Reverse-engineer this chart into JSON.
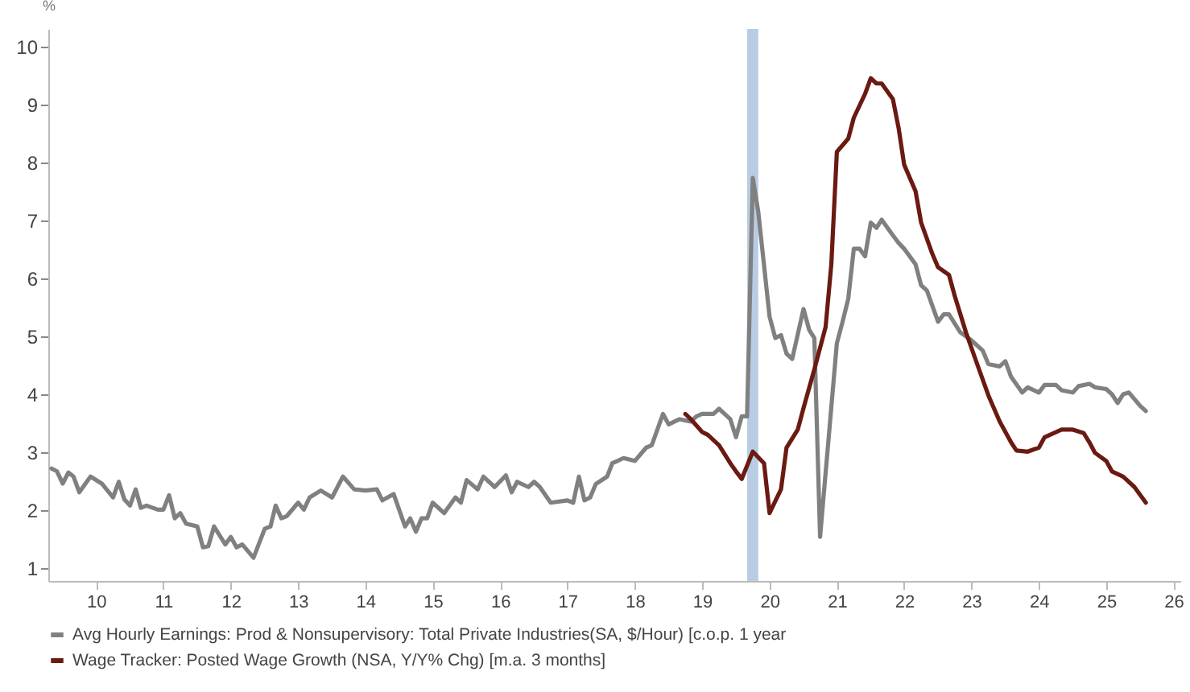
{
  "chart_data": {
    "type": "line",
    "ylabel": "%",
    "xlim": [
      "2009-10-15",
      "2026-08-07"
    ],
    "ylim": [
      0.78,
      10.3
    ],
    "xticks": [
      {
        "value": "2010-07",
        "label": "10"
      },
      {
        "value": "2011-07",
        "label": "11"
      },
      {
        "value": "2012-07",
        "label": "12"
      },
      {
        "value": "2013-07",
        "label": "13"
      },
      {
        "value": "2014-07",
        "label": "14"
      },
      {
        "value": "2015-07",
        "label": "15"
      },
      {
        "value": "2016-07",
        "label": "16"
      },
      {
        "value": "2017-07",
        "label": "17"
      },
      {
        "value": "2018-07",
        "label": "18"
      },
      {
        "value": "2019-07",
        "label": "19"
      },
      {
        "value": "2020-07",
        "label": "20"
      },
      {
        "value": "2021-07",
        "label": "21"
      },
      {
        "value": "2022-07",
        "label": "22"
      },
      {
        "value": "2023-07",
        "label": "23"
      },
      {
        "value": "2024-07",
        "label": "24"
      },
      {
        "value": "2025-07",
        "label": "25"
      },
      {
        "value": "2026-07",
        "label": "26"
      }
    ],
    "yticks": [
      1,
      2,
      3,
      4,
      5,
      6,
      7,
      8,
      9,
      10
    ],
    "grid": false,
    "legend": "bottom",
    "bands": [
      {
        "axis": "x",
        "from": "2020-03",
        "to": "2020-05",
        "color": "#b8cce4"
      }
    ],
    "series": [
      {
        "name": "Avg Hourly Earnings: Prod & Nonsupervisory: Total Private Industries(SA, $/Hour) [c.o.p. 1 year",
        "color": "#808080",
        "x": [
          "2009-11",
          "2009-12",
          "2010-01",
          "2010-02",
          "2010-03",
          "2010-04",
          "2010-06",
          "2010-08",
          "2010-10",
          "2010-11",
          "2010-12",
          "2011-01",
          "2011-02",
          "2011-03",
          "2011-04",
          "2011-06",
          "2011-07",
          "2011-08",
          "2011-09",
          "2011-10",
          "2011-11",
          "2012-01",
          "2012-02",
          "2012-03",
          "2012-04",
          "2012-06",
          "2012-07",
          "2012-08",
          "2012-09",
          "2012-11",
          "2013-01",
          "2013-02",
          "2013-03",
          "2013-04",
          "2013-05",
          "2013-07",
          "2013-08",
          "2013-09",
          "2013-11",
          "2014-01",
          "2014-03",
          "2014-05",
          "2014-07",
          "2014-09",
          "2014-10",
          "2014-12",
          "2015-02",
          "2015-03",
          "2015-04",
          "2015-05",
          "2015-06",
          "2015-07",
          "2015-09",
          "2015-11",
          "2015-12",
          "2016-01",
          "2016-03",
          "2016-04",
          "2016-06",
          "2016-08",
          "2016-09",
          "2016-10",
          "2016-12",
          "2017-01",
          "2017-02",
          "2017-04",
          "2017-07",
          "2017-08",
          "2017-09",
          "2017-10",
          "2017-11",
          "2017-12",
          "2018-02",
          "2018-03",
          "2018-05",
          "2018-07",
          "2018-09",
          "2018-10",
          "2018-12",
          "2019-01",
          "2019-03",
          "2019-05",
          "2019-06",
          "2019-07",
          "2019-09",
          "2019-10",
          "2019-12",
          "2020-01",
          "2020-02",
          "2020-03",
          "2020-04",
          "2020-05",
          "2020-07",
          "2020-08",
          "2020-09",
          "2020-10",
          "2020-11",
          "2021-01",
          "2021-02",
          "2021-03",
          "2021-04",
          "2021-07",
          "2021-08",
          "2021-09",
          "2021-10",
          "2021-11",
          "2021-12",
          "2022-01",
          "2022-02",
          "2022-03",
          "2022-05",
          "2022-06",
          "2022-07",
          "2022-09",
          "2022-10",
          "2022-11",
          "2023-01",
          "2023-02",
          "2023-03",
          "2023-05",
          "2023-07",
          "2023-09",
          "2023-10",
          "2023-12",
          "2024-01",
          "2024-02",
          "2024-04",
          "2024-05",
          "2024-07",
          "2024-08",
          "2024-10",
          "2024-11",
          "2025-01",
          "2025-02",
          "2025-04",
          "2025-05",
          "2025-07",
          "2025-08",
          "2025-09",
          "2025-10",
          "2025-11",
          "2026-01",
          "2026-02"
        ],
        "values": [
          2.72,
          2.67,
          2.46,
          2.65,
          2.58,
          2.31,
          2.58,
          2.46,
          2.22,
          2.49,
          2.19,
          2.08,
          2.36,
          2.04,
          2.08,
          2.01,
          2.01,
          2.26,
          1.86,
          1.95,
          1.77,
          1.72,
          1.36,
          1.38,
          1.72,
          1.41,
          1.54,
          1.36,
          1.41,
          1.18,
          1.68,
          1.72,
          2.08,
          1.86,
          1.9,
          2.13,
          2.01,
          2.22,
          2.34,
          2.22,
          2.58,
          2.36,
          2.34,
          2.36,
          2.17,
          2.28,
          1.72,
          1.86,
          1.63,
          1.86,
          1.86,
          2.13,
          1.95,
          2.22,
          2.13,
          2.52,
          2.36,
          2.58,
          2.4,
          2.6,
          2.31,
          2.49,
          2.4,
          2.49,
          2.4,
          2.13,
          2.17,
          2.13,
          2.58,
          2.17,
          2.22,
          2.45,
          2.58,
          2.81,
          2.9,
          2.85,
          3.08,
          3.12,
          3.66,
          3.48,
          3.57,
          3.53,
          3.62,
          3.66,
          3.66,
          3.75,
          3.57,
          3.26,
          3.62,
          3.62,
          7.73,
          7.14,
          5.34,
          4.97,
          5.02,
          4.7,
          4.61,
          5.47,
          5.11,
          4.97,
          1.54,
          4.88,
          5.25,
          5.65,
          6.51,
          6.51,
          6.38,
          6.96,
          6.87,
          7.01,
          6.74,
          6.61,
          6.51,
          6.24,
          5.88,
          5.79,
          5.25,
          5.38,
          5.38,
          5.07,
          4.93,
          4.75,
          4.52,
          4.48,
          4.57,
          4.3,
          4.03,
          4.12,
          4.03,
          4.16,
          4.16,
          4.07,
          4.03,
          4.14,
          4.18,
          4.12,
          4.09,
          4.0,
          3.85,
          4.0,
          4.03,
          3.8,
          3.71
        ]
      },
      {
        "name": "Wage Tracker: Posted Wage Growth (NSA, Y/Y% Chg) [m.a. 3 months]",
        "color": "#6b1a12",
        "x": [
          "2019-04",
          "2019-05",
          "2019-07",
          "2019-08",
          "2019-10",
          "2019-12",
          "2020-01",
          "2020-02",
          "2020-04",
          "2020-06",
          "2020-07",
          "2020-09",
          "2020-10",
          "2020-12",
          "2021-01",
          "2021-03",
          "2021-05",
          "2021-06",
          "2021-07",
          "2021-09",
          "2021-10",
          "2021-12",
          "2022-01",
          "2022-02",
          "2022-03",
          "2022-05",
          "2022-06",
          "2022-07",
          "2022-09",
          "2022-10",
          "2022-12",
          "2023-01",
          "2023-03",
          "2023-04",
          "2023-06",
          "2023-08",
          "2023-10",
          "2023-12",
          "2024-02",
          "2024-03",
          "2024-05",
          "2024-07",
          "2024-08",
          "2024-11",
          "2025-01",
          "2025-03",
          "2025-04",
          "2025-05",
          "2025-07",
          "2025-08",
          "2025-10",
          "2025-12",
          "2026-02"
        ],
        "values": [
          3.66,
          3.57,
          3.35,
          3.3,
          3.12,
          2.81,
          2.67,
          2.54,
          3.01,
          2.81,
          1.95,
          2.36,
          3.08,
          3.39,
          3.76,
          4.43,
          5.16,
          6.24,
          8.18,
          8.41,
          8.77,
          9.18,
          9.45,
          9.36,
          9.36,
          9.09,
          8.59,
          7.96,
          7.5,
          6.96,
          6.42,
          6.19,
          6.06,
          5.7,
          5.07,
          4.52,
          3.98,
          3.53,
          3.17,
          3.03,
          3.01,
          3.08,
          3.26,
          3.39,
          3.39,
          3.33,
          3.17,
          2.99,
          2.85,
          2.67,
          2.58,
          2.4,
          2.13
        ]
      }
    ]
  }
}
